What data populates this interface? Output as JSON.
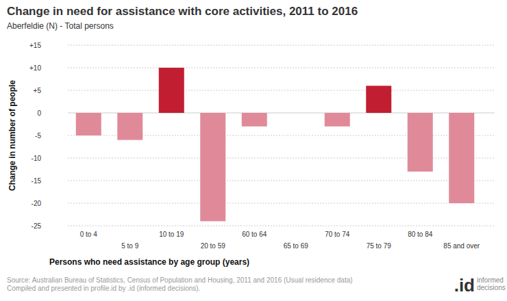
{
  "chart_data": {
    "type": "bar",
    "title": "Change in need for assistance with core activities, 2011 to 2016",
    "subtitle": "Aberfeldie (N) - Total persons",
    "x_label": "Persons who need assistance by age group (years)",
    "y_label": "Change in number of people",
    "categories": [
      "0 to 4",
      "5 to 9",
      "10 to 19",
      "20 to 59",
      "60 to 64",
      "65 to 69",
      "70 to 74",
      "75 to 79",
      "80 to 84",
      "85 and over"
    ],
    "values": [
      -5,
      -6,
      10,
      -24,
      -3,
      0,
      -3,
      6,
      -13,
      -20
    ],
    "colors": [
      "#e08a99",
      "#e08a99",
      "#c11f31",
      "#e08a99",
      "#e08a99",
      "#e08a99",
      "#e08a99",
      "#c11f31",
      "#e08a99",
      "#e08a99"
    ],
    "ylim": [
      -25,
      15
    ],
    "yticks": [
      {
        "value": 15,
        "label": "+15"
      },
      {
        "value": 10,
        "label": "+10"
      },
      {
        "value": 5,
        "label": "+5"
      },
      0,
      -5,
      -10,
      -15,
      -20,
      -25
    ],
    "grid": true,
    "source": [
      "Source: Australian Bureau of Statistics, Census of Population and Housing, 2011 and 2016 (Usual residence data)",
      "Compiled and presented in profile.id by .id (informed decisions)."
    ],
    "logo": ".id",
    "logo_text": [
      "informed",
      "decisions"
    ]
  }
}
